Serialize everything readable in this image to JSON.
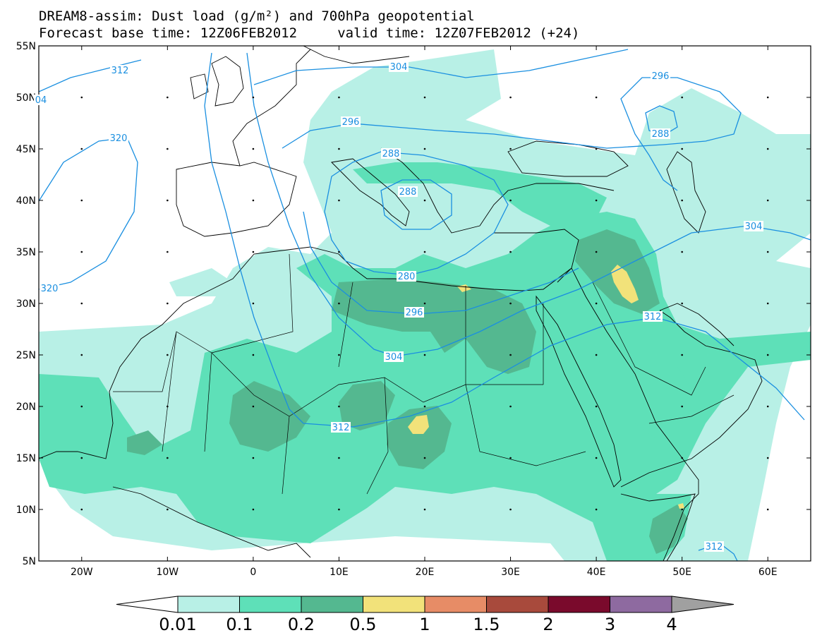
{
  "title": {
    "line1": "DREAM8-assim: Dust load (g/m²) and 700hPa geopotential",
    "line2": "Forecast base time: 12Z06FEB2012     valid time: 12Z07FEB2012 (+24)"
  },
  "axes": {
    "lon_labels": [
      "20W",
      "10W",
      "0",
      "10E",
      "20E",
      "30E",
      "40E",
      "50E",
      "60E"
    ],
    "lat_labels": [
      "55N",
      "50N",
      "45N",
      "40N",
      "35N",
      "30N",
      "25N",
      "20N",
      "15N",
      "10N",
      "5N"
    ],
    "lon_range": [
      -25,
      65
    ],
    "lat_range": [
      5,
      55
    ]
  },
  "colorbar": {
    "labels": [
      "0.01",
      "0.1",
      "0.2",
      "0.5",
      "1",
      "1.5",
      "2",
      "3",
      "4"
    ],
    "colors": [
      "#b8f0e6",
      "#5ee0b8",
      "#54b890",
      "#f2e27a",
      "#e78c66",
      "#a84a3c",
      "#7a0a2c",
      "#8e6aa0"
    ],
    "under_color": "#ffffff",
    "over_color": "#a0a0a0"
  },
  "contour_labels": {
    "color": "#1a8fe0",
    "values": [
      "312",
      "304",
      "296",
      "296",
      "320",
      "288",
      "288",
      "280",
      "288",
      "296",
      "304",
      "312",
      "304",
      "312",
      "320",
      "312",
      "04"
    ]
  },
  "dust_colors": {
    "light": "#b8f0e6",
    "medium": "#5ee0b8",
    "dark": "#54b890",
    "yellow": "#f2e27a"
  }
}
